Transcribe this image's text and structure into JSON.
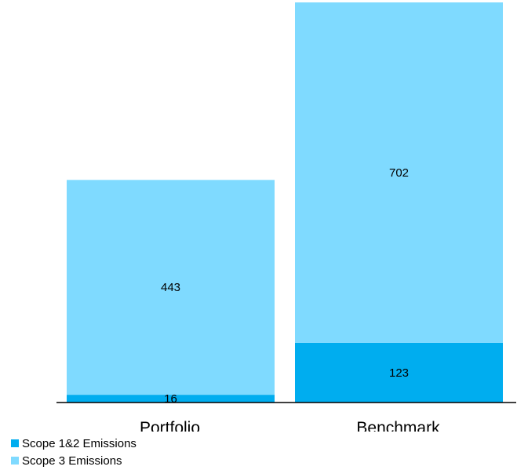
{
  "chart_data": {
    "type": "bar",
    "stacked": true,
    "categories": [
      "Portfolio",
      "Benchmark"
    ],
    "series": [
      {
        "name": "Scope 1&2 Emissions",
        "values": [
          16,
          123
        ],
        "color": "#00adef"
      },
      {
        "name": "Scope 3 Emissions",
        "values": [
          443,
          702
        ],
        "color": "#7fdaff"
      }
    ],
    "ylim": [
      0,
      830
    ],
    "grid": false,
    "legend_position": "bottom-left"
  }
}
